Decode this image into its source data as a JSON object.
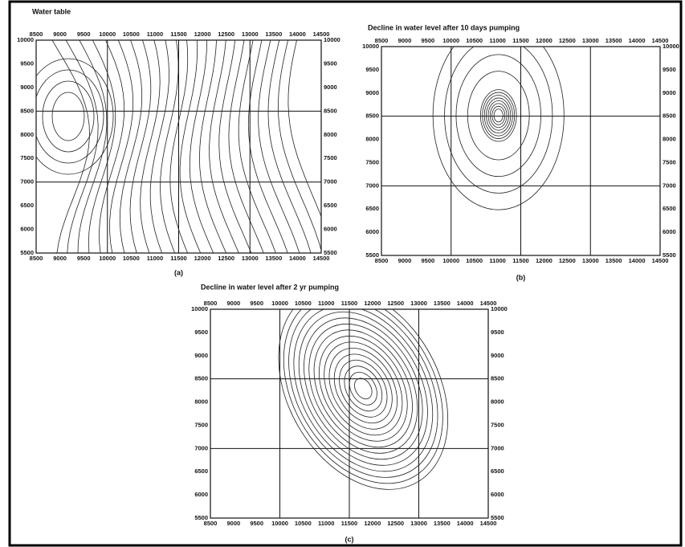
{
  "panels": [
    {
      "title": "Water table",
      "caption": "(a)"
    },
    {
      "title": "Decline in water level after 10 days pumping",
      "caption": "(b)"
    },
    {
      "title": "Decline in water level after 2 yr pumping",
      "caption": "(c)"
    }
  ],
  "x_ticks": [
    8500,
    9000,
    9500,
    10000,
    10500,
    11000,
    11500,
    12000,
    12500,
    13000,
    13500,
    14000,
    14500
  ],
  "y_ticks": [
    10000,
    9500,
    9000,
    8500,
    8000,
    7500,
    7000,
    6500,
    6000,
    5500
  ]
}
